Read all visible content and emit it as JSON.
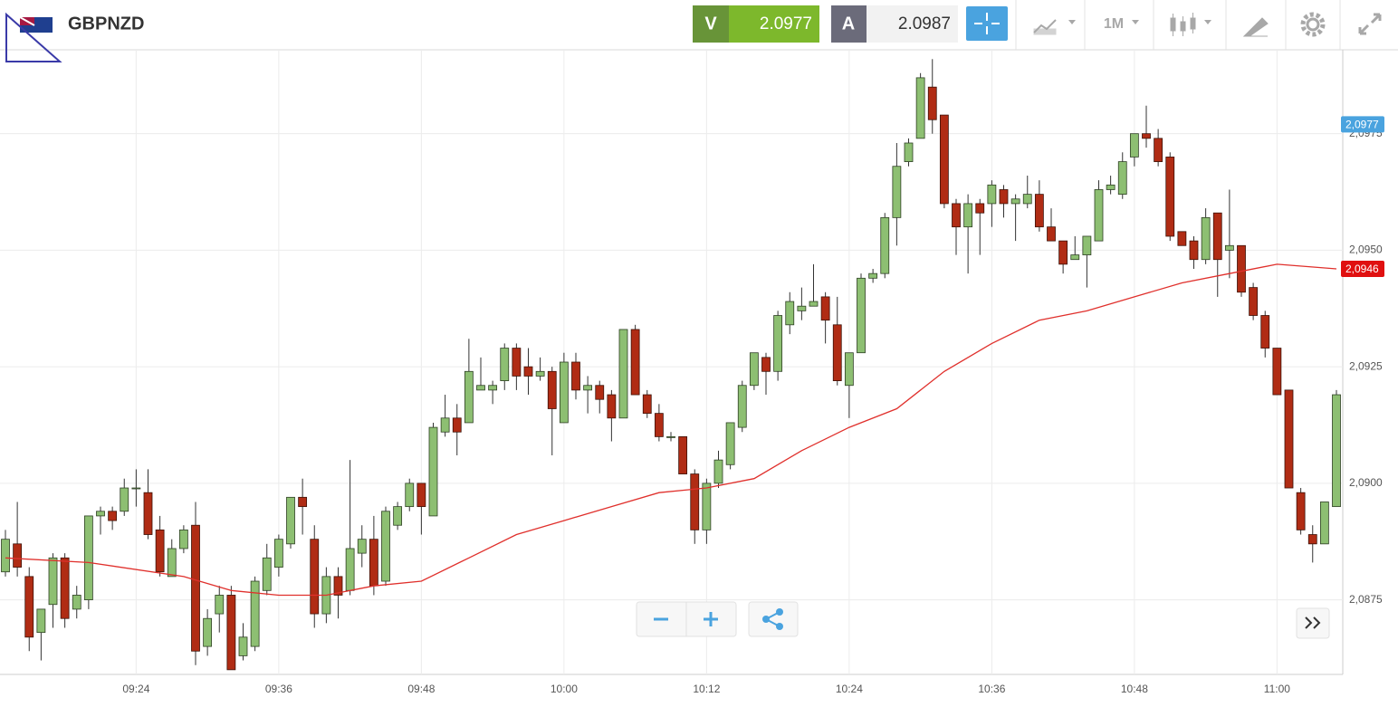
{
  "toolbar": {
    "symbol": "GBPNZD",
    "bid_label": "V",
    "bid": "2.0977",
    "ask_label": "A",
    "ask": "2.0987",
    "period": "1M"
  },
  "chart_data": {
    "type": "candlestick",
    "grid": true,
    "up_color": "#8dbf72",
    "down_color": "#b02c14",
    "ma_color": "#e0302c",
    "categories": [
      null,
      null,
      null,
      null,
      null,
      null,
      null,
      null,
      null,
      null,
      null,
      "09:24",
      null,
      null,
      null,
      null,
      null,
      null,
      null,
      null,
      null,
      null,
      null,
      "09:36",
      null,
      null,
      null,
      null,
      null,
      null,
      null,
      null,
      null,
      null,
      null,
      "09:48",
      null,
      null,
      null,
      null,
      null,
      null,
      null,
      null,
      null,
      null,
      null,
      "10:00",
      null,
      null,
      null,
      null,
      null,
      null,
      null,
      null,
      null,
      null,
      null,
      "10:12",
      null,
      null,
      null,
      null,
      null,
      null,
      null,
      null,
      null,
      null,
      null,
      "10:24",
      null,
      null,
      null,
      null,
      null,
      null,
      null,
      null,
      null,
      null,
      null,
      "10:36",
      null,
      null,
      null,
      null,
      null,
      null,
      null,
      null,
      null,
      null,
      null,
      "10:48",
      null,
      null,
      null,
      null,
      null,
      null,
      null,
      null,
      null,
      null,
      null,
      "11:00",
      null,
      null,
      null,
      null,
      null
    ],
    "open": [
      2.0881,
      2.0887,
      2.088,
      2.0868,
      2.0874,
      2.0884,
      2.0873,
      2.0875,
      2.0893,
      2.0894,
      2.0894,
      2.0899,
      2.0898,
      2.089,
      2.088,
      2.0886,
      2.0891,
      2.0865,
      2.0872,
      2.0876,
      2.0863,
      2.0865,
      2.0877,
      2.0882,
      2.0887,
      2.0897,
      2.0888,
      2.0872,
      2.088,
      2.0877,
      2.0885,
      2.0888,
      2.0879,
      2.0891,
      2.0895,
      2.09,
      2.0893,
      2.0911,
      2.0914,
      2.0913,
      2.092,
      2.092,
      2.0922,
      2.0929,
      2.0925,
      2.0923,
      2.0924,
      2.0913,
      2.0926,
      2.092,
      2.0921,
      2.0919,
      2.0914,
      2.0933,
      2.0919,
      2.0915,
      2.091,
      2.091,
      2.0902,
      2.089,
      2.09,
      2.0904,
      2.0912,
      2.0921,
      2.0927,
      2.0924,
      2.0934,
      2.0937,
      2.0938,
      2.094,
      2.0934,
      2.0921,
      2.0928,
      2.0944,
      2.0945,
      2.0957,
      2.0969,
      2.0974,
      2.0985,
      2.0979,
      2.096,
      2.0955,
      2.096,
      2.096,
      2.0963,
      2.096,
      2.096,
      2.0962,
      2.0955,
      2.0952,
      2.0948,
      2.0949,
      2.0952,
      2.0963,
      2.0962,
      2.097,
      2.0975,
      2.0974,
      2.097,
      2.0954,
      2.0952,
      2.0948,
      2.0958,
      2.095,
      2.0951,
      2.0942,
      2.0936,
      2.0929,
      2.092,
      2.0898,
      2.0889,
      2.0887,
      2.0895
    ],
    "high": [
      2.089,
      2.0896,
      2.0882,
      2.0873,
      2.0885,
      2.0885,
      2.0878,
      2.0893,
      2.0895,
      2.0895,
      2.0901,
      2.0903,
      2.0903,
      2.0893,
      2.0888,
      2.0891,
      2.0896,
      2.0873,
      2.0878,
      2.0878,
      2.087,
      2.088,
      2.0887,
      2.0889,
      2.0897,
      2.0901,
      2.0891,
      2.0882,
      2.0882,
      2.0905,
      2.0891,
      2.0893,
      2.0895,
      2.0896,
      2.0901,
      2.09,
      2.0913,
      2.0919,
      2.0917,
      2.0931,
      2.0927,
      2.0922,
      2.093,
      2.093,
      2.0929,
      2.0927,
      2.0925,
      2.0928,
      2.0928,
      2.0923,
      2.0922,
      2.092,
      2.0933,
      2.0934,
      2.092,
      2.0917,
      2.0911,
      2.091,
      2.0903,
      2.0901,
      2.0907,
      2.0913,
      2.0922,
      2.0928,
      2.0928,
      2.0937,
      2.0941,
      2.0942,
      2.0947,
      2.0941,
      2.094,
      2.0928,
      2.0945,
      2.0946,
      2.0958,
      2.0973,
      2.0974,
      2.0988,
      2.0991,
      2.0979,
      2.0961,
      2.0962,
      2.0961,
      2.0965,
      2.0964,
      2.0962,
      2.0966,
      2.0965,
      2.0959,
      2.0952,
      2.0953,
      2.0953,
      2.0965,
      2.0966,
      2.0971,
      2.0975,
      2.0981,
      2.0976,
      2.0971,
      2.0954,
      2.0953,
      2.0959,
      2.0958,
      2.0963,
      2.0951,
      2.0943,
      2.0937,
      2.0929,
      2.092,
      2.0899,
      2.0891,
      2.0896,
      2.092
    ],
    "low": [
      2.088,
      2.088,
      2.0864,
      2.0862,
      2.0869,
      2.0869,
      2.0871,
      2.0873,
      2.0889,
      2.089,
      2.0893,
      2.0895,
      2.0888,
      2.088,
      2.088,
      2.0885,
      2.0861,
      2.0863,
      2.0868,
      2.086,
      2.0862,
      2.0864,
      2.0876,
      2.088,
      2.0886,
      2.0889,
      2.0869,
      2.087,
      2.0871,
      2.0876,
      2.0882,
      2.0876,
      2.0878,
      2.089,
      2.0894,
      2.0889,
      2.0893,
      2.091,
      2.0906,
      2.0913,
      2.092,
      2.0917,
      2.092,
      2.092,
      2.0919,
      2.0922,
      2.0906,
      2.0913,
      2.0918,
      2.0915,
      2.0915,
      2.0909,
      2.0914,
      2.0919,
      2.0914,
      2.0909,
      2.0909,
      2.0902,
      2.0887,
      2.0887,
      2.0899,
      2.0903,
      2.0911,
      2.092,
      2.0919,
      2.0922,
      2.0932,
      2.0935,
      2.0938,
      2.093,
      2.0921,
      2.0914,
      2.0928,
      2.0943,
      2.0944,
      2.0951,
      2.0968,
      2.0974,
      2.0975,
      2.0959,
      2.0949,
      2.0945,
      2.0949,
      2.0955,
      2.0957,
      2.0952,
      2.0959,
      2.0954,
      2.0952,
      2.0945,
      2.0948,
      2.0942,
      2.0952,
      2.0962,
      2.0961,
      2.0968,
      2.0972,
      2.0968,
      2.0952,
      2.0951,
      2.0946,
      2.0947,
      2.094,
      2.0944,
      2.094,
      2.0935,
      2.0927,
      2.0919,
      2.0899,
      2.0889,
      2.0883,
      2.0887,
      2.0895
    ],
    "close": [
      2.0888,
      2.0882,
      2.0867,
      2.0873,
      2.0884,
      2.0871,
      2.0876,
      2.0893,
      2.0894,
      2.0892,
      2.0899,
      2.0899,
      2.0889,
      2.0881,
      2.0886,
      2.089,
      2.0864,
      2.0871,
      2.0876,
      2.086,
      2.0867,
      2.0879,
      2.0884,
      2.0888,
      2.0897,
      2.0895,
      2.0872,
      2.088,
      2.0876,
      2.0886,
      2.0888,
      2.0878,
      2.0894,
      2.0895,
      2.09,
      2.0895,
      2.0912,
      2.0914,
      2.0911,
      2.0924,
      2.0921,
      2.0921,
      2.0929,
      2.0923,
      2.0923,
      2.0924,
      2.0916,
      2.0926,
      2.092,
      2.0921,
      2.0918,
      2.0914,
      2.0933,
      2.0919,
      2.0915,
      2.091,
      2.091,
      2.0902,
      2.089,
      2.09,
      2.0905,
      2.0913,
      2.0921,
      2.0928,
      2.0924,
      2.0936,
      2.0939,
      2.0938,
      2.0939,
      2.0935,
      2.0922,
      2.0928,
      2.0944,
      2.0945,
      2.0957,
      2.0968,
      2.0973,
      2.0987,
      2.0978,
      2.096,
      2.0955,
      2.096,
      2.0958,
      2.0964,
      2.096,
      2.0961,
      2.0962,
      2.0955,
      2.0952,
      2.0947,
      2.0949,
      2.0953,
      2.0963,
      2.0964,
      2.0969,
      2.0975,
      2.0974,
      2.0969,
      2.0953,
      2.0951,
      2.0948,
      2.0957,
      2.0948,
      2.0951,
      2.0941,
      2.0936,
      2.0929,
      2.0919,
      2.0899,
      2.089,
      2.0887,
      2.0896,
      2.0919
    ],
    "ma": {
      "x": [
        0,
        7,
        15,
        19,
        23,
        27,
        31,
        35,
        39,
        43,
        47,
        51,
        55,
        59,
        63,
        67,
        71,
        75,
        79,
        83,
        87,
        91,
        95,
        99,
        103,
        107,
        112
      ],
      "values": [
        2.0884,
        2.0883,
        2.088,
        2.0877,
        2.0876,
        2.0876,
        2.0878,
        2.0879,
        2.0884,
        2.0889,
        2.0892,
        2.0895,
        2.0898,
        2.0899,
        2.0901,
        2.0907,
        2.0912,
        2.0916,
        2.0924,
        2.093,
        2.0935,
        2.0937,
        2.094,
        2.0943,
        2.0945,
        2.0947,
        2.0946
      ]
    },
    "ylim": [
      2.0859,
      2.0993
    ],
    "yticks": [
      {
        "value": 2.0875,
        "label": "2,0875"
      },
      {
        "value": 2.09,
        "label": "2,0900"
      },
      {
        "value": 2.0925,
        "label": "2,0925"
      },
      {
        "value": 2.095,
        "label": "2,0950"
      },
      {
        "value": 2.0975,
        "label": "2,0975"
      }
    ],
    "last_price": {
      "value": 2.0977,
      "label": "2,0977"
    },
    "ma_last": {
      "value": 2.0946,
      "label": "2,0946"
    }
  }
}
